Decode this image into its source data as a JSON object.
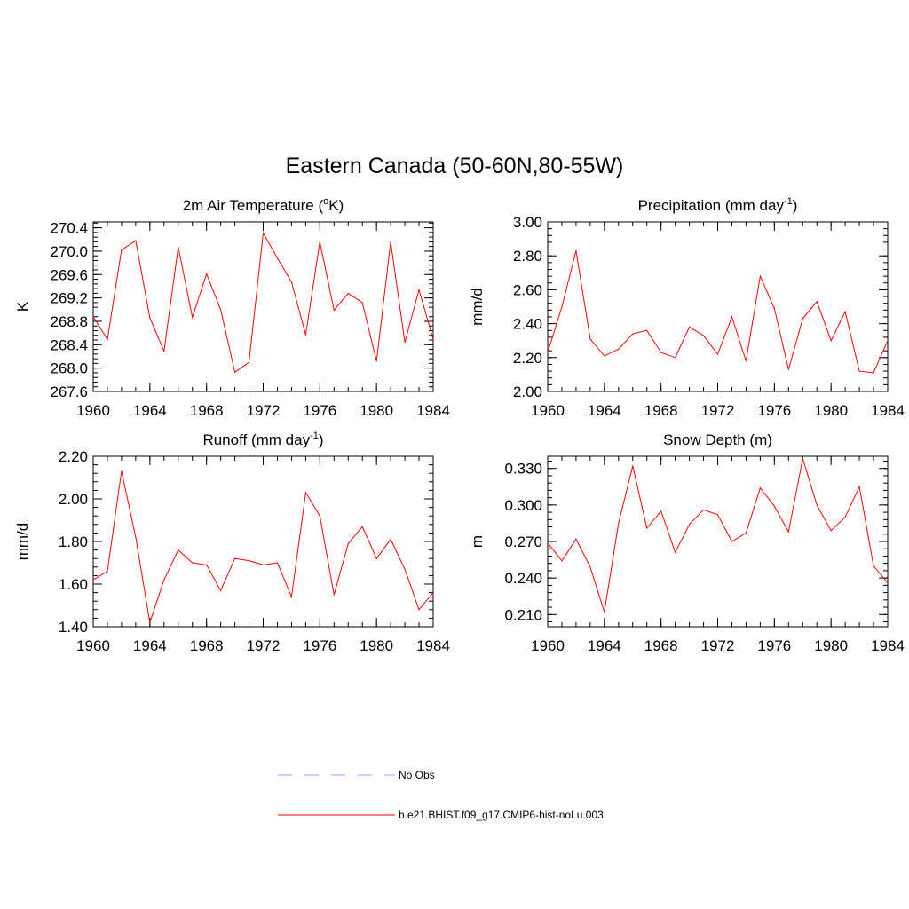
{
  "title": "Eastern Canada (50-60N,80-55W)",
  "legend": [
    {
      "label": "No Obs",
      "color": "#9999ff",
      "dash": true
    },
    {
      "label": "b.e21.BHIST.f09_g17.CMIP6-hist-noLu.003",
      "color": "#ff0000",
      "dash": false
    }
  ],
  "colors": {
    "line": "#ff0000",
    "axis": "#000000"
  },
  "chart_data": [
    {
      "type": "line",
      "title": "2m Air Temperature (",
      "title_sup": "o",
      "title_tail": "K)",
      "ylabel": "K",
      "xlim": [
        1960,
        1984
      ],
      "ylim": [
        267.6,
        270.5
      ],
      "yticks": [
        267.6,
        268.0,
        268.4,
        268.8,
        269.2,
        269.6,
        270.0,
        270.4
      ],
      "ytick_labels": [
        "267.6",
        "268.0",
        "268.4",
        "268.8",
        "269.2",
        "269.6",
        "270.0",
        "270.4"
      ],
      "xticks": [
        1960,
        1964,
        1968,
        1972,
        1976,
        1980,
        1984
      ],
      "xtick_labels": [
        "1960",
        "1964",
        "1968",
        "1972",
        "1976",
        "1980",
        "1984"
      ],
      "series": [
        {
          "x": [
            1960,
            1961,
            1962,
            1963,
            1964,
            1965,
            1966,
            1967,
            1968,
            1969,
            1970,
            1971,
            1972,
            1973,
            1974,
            1975,
            1976,
            1977,
            1978,
            1979,
            1980,
            1981,
            1982,
            1983,
            1984
          ],
          "values": [
            268.88,
            268.49,
            270.02,
            270.18,
            268.86,
            268.29,
            270.07,
            268.87,
            269.61,
            269.0,
            267.93,
            268.1,
            270.31,
            269.88,
            269.47,
            268.57,
            270.16,
            268.99,
            269.28,
            269.12,
            268.12,
            270.16,
            268.44,
            269.34,
            268.49
          ]
        }
      ]
    },
    {
      "type": "line",
      "title": "Precipitation (mm day",
      "title_sup": "-1",
      "title_tail": ")",
      "ylabel": "mm/d",
      "xlim": [
        1960,
        1984
      ],
      "ylim": [
        2.0,
        3.0
      ],
      "yticks": [
        2.0,
        2.2,
        2.4,
        2.6,
        2.8,
        3.0
      ],
      "ytick_labels": [
        "2.00",
        "2.20",
        "2.40",
        "2.60",
        "2.80",
        "3.00"
      ],
      "xticks": [
        1960,
        1964,
        1968,
        1972,
        1976,
        1980,
        1984
      ],
      "xtick_labels": [
        "1960",
        "1964",
        "1968",
        "1972",
        "1976",
        "1980",
        "1984"
      ],
      "series": [
        {
          "x": [
            1960,
            1961,
            1962,
            1963,
            1964,
            1965,
            1966,
            1967,
            1968,
            1969,
            1970,
            1971,
            1972,
            1973,
            1974,
            1975,
            1976,
            1977,
            1978,
            1979,
            1980,
            1981,
            1982,
            1983,
            1984
          ],
          "values": [
            2.23,
            2.5,
            2.83,
            2.31,
            2.21,
            2.25,
            2.34,
            2.36,
            2.23,
            2.2,
            2.38,
            2.33,
            2.22,
            2.44,
            2.18,
            2.68,
            2.49,
            2.13,
            2.43,
            2.53,
            2.3,
            2.47,
            2.12,
            2.11,
            2.3
          ]
        }
      ]
    },
    {
      "type": "line",
      "title": "Runoff (mm day",
      "title_sup": "-1",
      "title_tail": ")",
      "ylabel": "mm/d",
      "xlim": [
        1960,
        1984
      ],
      "ylim": [
        1.4,
        2.2
      ],
      "yticks": [
        1.4,
        1.6,
        1.8,
        2.0,
        2.2
      ],
      "ytick_labels": [
        "1.40",
        "1.60",
        "1.80",
        "2.00",
        "2.20"
      ],
      "xticks": [
        1960,
        1964,
        1968,
        1972,
        1976,
        1980,
        1984
      ],
      "xtick_labels": [
        "1960",
        "1964",
        "1968",
        "1972",
        "1976",
        "1980",
        "1984"
      ],
      "series": [
        {
          "x": [
            1960,
            1961,
            1962,
            1963,
            1964,
            1965,
            1966,
            1967,
            1968,
            1969,
            1970,
            1971,
            1972,
            1973,
            1974,
            1975,
            1976,
            1977,
            1978,
            1979,
            1980,
            1981,
            1982,
            1983,
            1984
          ],
          "values": [
            1.62,
            1.66,
            2.13,
            1.82,
            1.42,
            1.62,
            1.76,
            1.7,
            1.69,
            1.57,
            1.72,
            1.71,
            1.69,
            1.7,
            1.54,
            2.03,
            1.92,
            1.55,
            1.79,
            1.87,
            1.72,
            1.81,
            1.67,
            1.48,
            1.56
          ]
        }
      ]
    },
    {
      "type": "line",
      "title": "Snow Depth (m)",
      "title_sup": "",
      "title_tail": "",
      "ylabel": "m",
      "xlim": [
        1960,
        1984
      ],
      "ylim": [
        0.2,
        0.34
      ],
      "yticks": [
        0.21,
        0.24,
        0.27,
        0.3,
        0.33
      ],
      "ytick_labels": [
        "0.210",
        "0.240",
        "0.270",
        "0.300",
        "0.330"
      ],
      "xticks": [
        1960,
        1964,
        1968,
        1972,
        1976,
        1980,
        1984
      ],
      "xtick_labels": [
        "1960",
        "1964",
        "1968",
        "1972",
        "1976",
        "1980",
        "1984"
      ],
      "series": [
        {
          "x": [
            1960,
            1961,
            1962,
            1963,
            1964,
            1965,
            1966,
            1967,
            1968,
            1969,
            1970,
            1971,
            1972,
            1973,
            1974,
            1975,
            1976,
            1977,
            1978,
            1979,
            1980,
            1981,
            1982,
            1983,
            1984
          ],
          "values": [
            0.269,
            0.254,
            0.272,
            0.249,
            0.212,
            0.285,
            0.332,
            0.281,
            0.295,
            0.261,
            0.284,
            0.296,
            0.292,
            0.27,
            0.277,
            0.314,
            0.299,
            0.278,
            0.338,
            0.3,
            0.279,
            0.29,
            0.315,
            0.25,
            0.236
          ]
        }
      ]
    }
  ]
}
